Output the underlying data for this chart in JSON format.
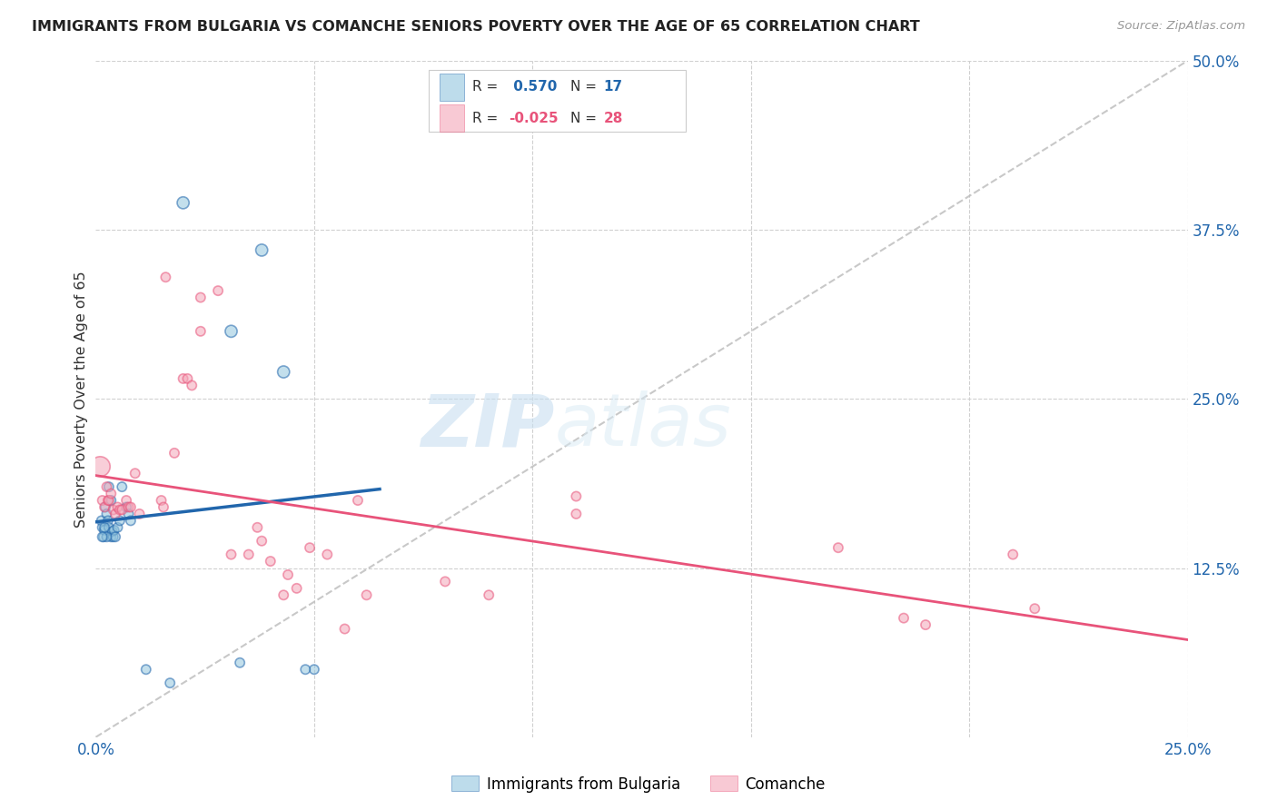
{
  "title": "IMMIGRANTS FROM BULGARIA VS COMANCHE SENIORS POVERTY OVER THE AGE OF 65 CORRELATION CHART",
  "source": "Source: ZipAtlas.com",
  "ylabel": "Seniors Poverty Over the Age of 65",
  "x_min": 0.0,
  "x_max": 0.25,
  "y_min": 0.0,
  "y_max": 0.5,
  "legend1_r": "0.570",
  "legend1_n": "17",
  "legend2_r": "-0.025",
  "legend2_n": "28",
  "legend_label1": "Immigrants from Bulgaria",
  "legend_label2": "Comanche",
  "color_blue": "#92c5de",
  "color_pink": "#f4a6b8",
  "color_blue_line": "#2166ac",
  "color_pink_line": "#e8537a",
  "color_dashed": "#bbbbbb",
  "watermark_zip": "ZIP",
  "watermark_atlas": "atlas",
  "bulgaria_points": [
    [
      0.0013,
      0.16
    ],
    [
      0.0015,
      0.155
    ],
    [
      0.0018,
      0.148
    ],
    [
      0.002,
      0.153
    ],
    [
      0.0022,
      0.17
    ],
    [
      0.0025,
      0.165
    ],
    [
      0.0028,
      0.16
    ],
    [
      0.003,
      0.155
    ],
    [
      0.0035,
      0.148
    ],
    [
      0.0038,
      0.152
    ],
    [
      0.004,
      0.148
    ],
    [
      0.0042,
      0.153
    ],
    [
      0.0045,
      0.148
    ],
    [
      0.005,
      0.155
    ],
    [
      0.0055,
      0.16
    ],
    [
      0.003,
      0.185
    ],
    [
      0.0035,
      0.175
    ],
    [
      0.006,
      0.185
    ],
    [
      0.007,
      0.17
    ],
    [
      0.0075,
      0.165
    ],
    [
      0.008,
      0.16
    ],
    [
      0.0025,
      0.148
    ],
    [
      0.002,
      0.155
    ],
    [
      0.0015,
      0.148
    ],
    [
      0.02,
      0.395
    ],
    [
      0.038,
      0.36
    ],
    [
      0.043,
      0.27
    ],
    [
      0.031,
      0.3
    ],
    [
      0.0115,
      0.05
    ],
    [
      0.017,
      0.04
    ],
    [
      0.033,
      0.055
    ],
    [
      0.05,
      0.05
    ],
    [
      0.048,
      0.05
    ]
  ],
  "bulgaria_sizes": [
    55,
    55,
    55,
    55,
    55,
    55,
    55,
    55,
    55,
    55,
    55,
    55,
    55,
    55,
    55,
    55,
    55,
    55,
    55,
    55,
    55,
    55,
    55,
    55,
    90,
    90,
    90,
    90,
    55,
    55,
    55,
    55,
    55
  ],
  "bulgaria_large_idx": [
    0
  ],
  "comanche_points": [
    [
      0.001,
      0.2
    ],
    [
      0.0015,
      0.175
    ],
    [
      0.002,
      0.17
    ],
    [
      0.0025,
      0.185
    ],
    [
      0.0028,
      0.175
    ],
    [
      0.003,
      0.175
    ],
    [
      0.0035,
      0.18
    ],
    [
      0.004,
      0.168
    ],
    [
      0.0045,
      0.165
    ],
    [
      0.005,
      0.17
    ],
    [
      0.0055,
      0.168
    ],
    [
      0.006,
      0.168
    ],
    [
      0.007,
      0.175
    ],
    [
      0.0075,
      0.17
    ],
    [
      0.008,
      0.17
    ],
    [
      0.009,
      0.195
    ],
    [
      0.01,
      0.165
    ],
    [
      0.015,
      0.175
    ],
    [
      0.0155,
      0.17
    ],
    [
      0.018,
      0.21
    ],
    [
      0.02,
      0.265
    ],
    [
      0.021,
      0.265
    ],
    [
      0.022,
      0.26
    ],
    [
      0.024,
      0.325
    ],
    [
      0.024,
      0.3
    ],
    [
      0.028,
      0.33
    ],
    [
      0.016,
      0.34
    ],
    [
      0.031,
      0.135
    ],
    [
      0.035,
      0.135
    ],
    [
      0.037,
      0.155
    ],
    [
      0.038,
      0.145
    ],
    [
      0.04,
      0.13
    ],
    [
      0.043,
      0.105
    ],
    [
      0.044,
      0.12
    ],
    [
      0.046,
      0.11
    ],
    [
      0.049,
      0.14
    ],
    [
      0.053,
      0.135
    ],
    [
      0.057,
      0.08
    ],
    [
      0.06,
      0.175
    ],
    [
      0.062,
      0.105
    ],
    [
      0.08,
      0.115
    ],
    [
      0.09,
      0.105
    ],
    [
      0.11,
      0.165
    ],
    [
      0.17,
      0.14
    ],
    [
      0.185,
      0.088
    ],
    [
      0.19,
      0.083
    ],
    [
      0.215,
      0.095
    ],
    [
      0.11,
      0.178
    ],
    [
      0.21,
      0.135
    ]
  ],
  "comanche_sizes": [
    250,
    55,
    55,
    55,
    55,
    55,
    55,
    55,
    55,
    55,
    55,
    55,
    55,
    55,
    55,
    55,
    55,
    55,
    55,
    55,
    55,
    55,
    55,
    55,
    55,
    55,
    55,
    55,
    55,
    55,
    55,
    55,
    55,
    55,
    55,
    55,
    55,
    55,
    55,
    55,
    55,
    55,
    55,
    55,
    55,
    55,
    55,
    55,
    55
  ]
}
